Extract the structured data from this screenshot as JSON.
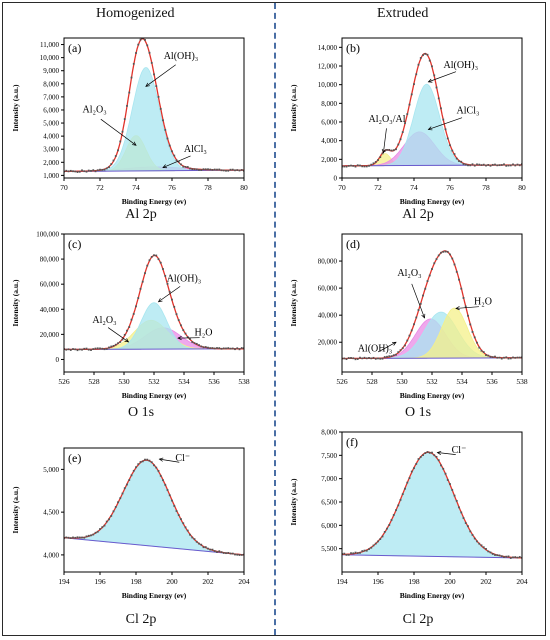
{
  "columns": {
    "left": "Homogenized",
    "right": "Extruded"
  },
  "captions": {
    "al": "Al 2p",
    "o": "O 1s",
    "cl": "Cl 2p"
  },
  "chart_data": [
    {
      "id": "a",
      "label": "(a)",
      "type": "area",
      "xlabel": "Binding Energy (ev)",
      "ylabel": "Intensity (a.u.)",
      "xlim": [
        70,
        80
      ],
      "ylim": [
        800,
        11500
      ],
      "xticks": [
        70,
        72,
        74,
        76,
        78,
        80
      ],
      "yticks": [
        1000,
        2000,
        3000,
        4000,
        5000,
        6000,
        7000,
        8000,
        9000,
        10000,
        11000
      ],
      "ytick_labels": [
        "1,000",
        "2,000",
        "3,000",
        "4,000",
        "5,000",
        "6,000",
        "7,000",
        "8,000",
        "9,000",
        "10,000",
        "11,000"
      ],
      "baseline": [
        1300,
        1400
      ],
      "components": [
        {
          "name": "Al(OH)₃",
          "center": 74.55,
          "height": 7900,
          "width": 0.75,
          "color": "#a8e6f0"
        },
        {
          "name": "Al₂O₃",
          "center": 74.0,
          "height": 2700,
          "width": 0.55,
          "color": "#f4f08a"
        },
        {
          "name": "AlCl₃",
          "center": 75.0,
          "height": 300,
          "width": 1.6,
          "color": "#e98be6"
        }
      ],
      "annotations": [
        {
          "text": "Al(OH)₃",
          "at": [
            74.55,
            7800
          ],
          "label_pos": [
            76.5,
            9900
          ]
        },
        {
          "text": "Al₂O₃",
          "at": [
            74.0,
            3300
          ],
          "label_pos": [
            71.7,
            5800
          ]
        },
        {
          "text": "AlCl₃",
          "at": [
            75.5,
            1600
          ],
          "label_pos": [
            77.3,
            2800
          ]
        }
      ]
    },
    {
      "id": "b",
      "label": "(b)",
      "type": "area",
      "xlabel": "Binding Energy (ev)",
      "ylabel": "Intensity (a.u.)",
      "xlim": [
        70,
        80
      ],
      "ylim": [
        0,
        15000
      ],
      "xticks": [
        70,
        72,
        74,
        76,
        78,
        80
      ],
      "yticks": [
        0,
        2000,
        4000,
        6000,
        8000,
        10000,
        12000,
        14000
      ],
      "ytick_labels": [
        "0",
        "2,000",
        "4,000",
        "6,000",
        "8,000",
        "10,000",
        "12,000",
        "14,000"
      ],
      "baseline": [
        1300,
        1400
      ],
      "components": [
        {
          "name": "Al(OH)₃",
          "center": 74.7,
          "height": 8700,
          "width": 0.72,
          "color": "#a8e6f0"
        },
        {
          "name": "AlCl₃",
          "center": 74.3,
          "height": 3600,
          "width": 0.85,
          "color": "#e98be6"
        },
        {
          "name": "Al₂O₃/Al",
          "center": 72.4,
          "height": 1300,
          "width": 0.3,
          "color": "#f4f08a"
        }
      ],
      "annotations": [
        {
          "text": "Al(OH)₃",
          "at": [
            74.8,
            10300
          ],
          "label_pos": [
            76.6,
            11800
          ]
        },
        {
          "text": "AlCl₃",
          "at": [
            74.8,
            5200
          ],
          "label_pos": [
            77.0,
            6900
          ]
        },
        {
          "text": "Al₂O₃/Al",
          "at": [
            72.3,
            2700
          ],
          "label_pos": [
            72.5,
            6000
          ]
        }
      ]
    },
    {
      "id": "c",
      "label": "(c)",
      "type": "area",
      "xlabel": "Binding Energy (ev)",
      "ylabel": "Intensity (a.u.)",
      "xlim": [
        526,
        538
      ],
      "ylim": [
        -10000,
        100000
      ],
      "xticks": [
        526,
        528,
        530,
        532,
        534,
        536,
        538
      ],
      "yticks": [
        0,
        20000,
        40000,
        60000,
        80000,
        100000
      ],
      "ytick_labels": [
        "0",
        "20,000",
        "40,000",
        "60,000",
        "80,000",
        "100,000"
      ],
      "baseline": [
        8000,
        8500
      ],
      "components": [
        {
          "name": "Al(OH)₃",
          "center": 532.0,
          "height": 37000,
          "width": 0.85,
          "color": "#a8e6f0"
        },
        {
          "name": "Al₂O₃",
          "center": 531.8,
          "height": 23000,
          "width": 1.1,
          "color": "#f4f08a"
        },
        {
          "name": "H₂O",
          "center": 532.6,
          "height": 17000,
          "width": 1.2,
          "color": "#e98be6"
        }
      ],
      "annotations": [
        {
          "text": "Al(OH)₃",
          "at": [
            532.3,
            46000
          ],
          "label_pos": [
            534.0,
            62000
          ]
        },
        {
          "text": "Al₂O₃",
          "at": [
            530.3,
            14000
          ],
          "label_pos": [
            528.7,
            29000
          ]
        },
        {
          "text": "H₂O",
          "at": [
            533.6,
            17000
          ],
          "label_pos": [
            535.3,
            19000
          ]
        }
      ]
    },
    {
      "id": "d",
      "label": "(d)",
      "type": "area",
      "xlabel": "Binding Energy (ev)",
      "ylabel": "Intensity (a.u.)",
      "xlim": [
        526,
        538
      ],
      "ylim": [
        -2000,
        100000
      ],
      "xticks": [
        526,
        528,
        530,
        532,
        534,
        536,
        538
      ],
      "yticks": [
        20000,
        40000,
        60000,
        80000
      ],
      "ytick_labels": [
        "20,000",
        "40,000",
        "60,000",
        "80,000"
      ],
      "baseline": [
        8000,
        8500
      ],
      "components": [
        {
          "name": "H₂O",
          "center": 533.5,
          "height": 37000,
          "width": 0.85,
          "color": "#f4f08a"
        },
        {
          "name": "Al₂O₃",
          "center": 532.6,
          "height": 34000,
          "width": 1.1,
          "color": "#a8e6f0"
        },
        {
          "name": "Al(OH)₃",
          "center": 531.9,
          "height": 29000,
          "width": 1.0,
          "color": "#e98be6"
        }
      ],
      "annotations": [
        {
          "text": "H₂O",
          "at": [
            533.6,
            45000
          ],
          "label_pos": [
            535.4,
            48000
          ]
        },
        {
          "text": "Al₂O₃",
          "at": [
            531.5,
            38000
          ],
          "label_pos": [
            530.5,
            69000
          ]
        },
        {
          "text": "Al(OH)₃",
          "at": [
            529.6,
            20000
          ],
          "label_pos": [
            528.2,
            13000
          ]
        }
      ]
    },
    {
      "id": "e",
      "label": "(e)",
      "type": "area",
      "xlabel": "Binding Energy (ev)",
      "ylabel": "Intensity (a.u.)",
      "xlim": [
        194,
        204
      ],
      "ylim": [
        3800,
        5250
      ],
      "xticks": [
        194,
        196,
        198,
        200,
        202,
        204
      ],
      "yticks": [
        4000,
        4500,
        5000
      ],
      "ytick_labels": [
        "4,000",
        "4,500",
        "5,000"
      ],
      "baseline": [
        4200,
        4000
      ],
      "components": [
        {
          "name": "Cl⁻",
          "center": 198.6,
          "height": 1000,
          "width": 1.3,
          "color": "#a8e6f0"
        }
      ],
      "annotations": [
        {
          "text": "Cl⁻",
          "at": [
            199.3,
            5120
          ],
          "label_pos": [
            200.6,
            5100
          ]
        }
      ]
    },
    {
      "id": "f",
      "label": "(f)",
      "type": "area",
      "xlabel": "Binding Energy (ev)",
      "ylabel": "Intensity (a.u.)",
      "xlim": [
        194,
        204
      ],
      "ylim": [
        5000,
        8000
      ],
      "xticks": [
        194,
        196,
        198,
        200,
        202,
        204
      ],
      "yticks": [
        5500,
        6000,
        6500,
        7000,
        7500,
        8000
      ],
      "ytick_labels": [
        "5,500",
        "6,000",
        "6,500",
        "7,000",
        "7,500",
        "8,000"
      ],
      "baseline": [
        5370,
        5300
      ],
      "components": [
        {
          "name": "Cl⁻",
          "center": 198.8,
          "height": 2230,
          "width": 1.4,
          "color": "#a8e6f0"
        }
      ],
      "annotations": [
        {
          "text": "Cl⁻",
          "at": [
            199.3,
            7560
          ],
          "label_pos": [
            200.5,
            7550
          ]
        }
      ]
    }
  ]
}
